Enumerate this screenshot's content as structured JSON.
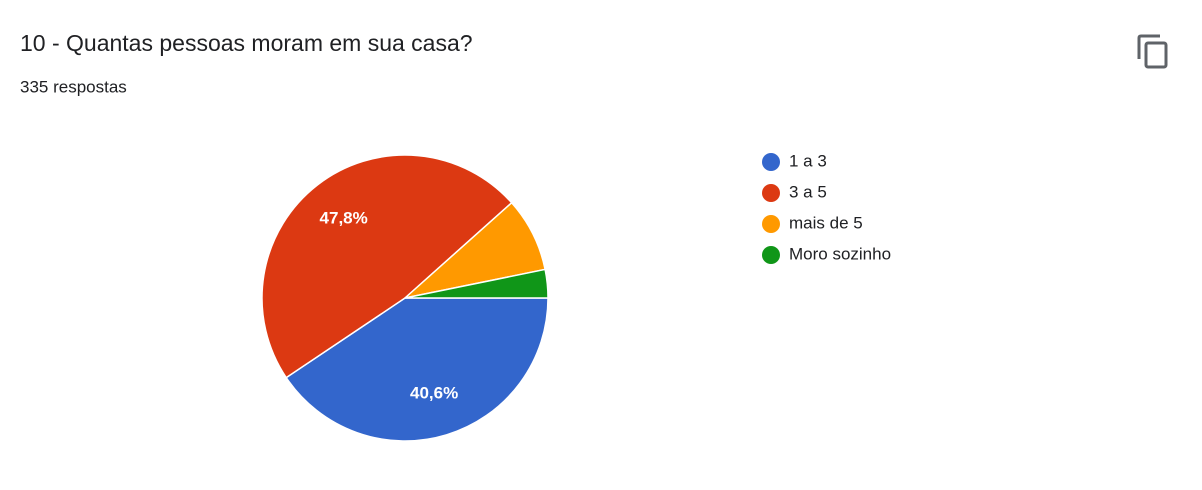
{
  "chart_data": {
    "type": "pie",
    "title": "10 - Quantas pessoas moram em sua casa?",
    "subtitle": "335 respostas",
    "categories": [
      "1 a 3",
      "3 a 5",
      "mais de 5",
      "Moro sozinho"
    ],
    "values": [
      40.6,
      47.8,
      8.4,
      3.2
    ],
    "value_labels": [
      "40,6%",
      "47,8%",
      null,
      null
    ],
    "colors": [
      "#3366cc",
      "#dc3912",
      "#ff9900",
      "#109618"
    ],
    "legend": "right"
  }
}
